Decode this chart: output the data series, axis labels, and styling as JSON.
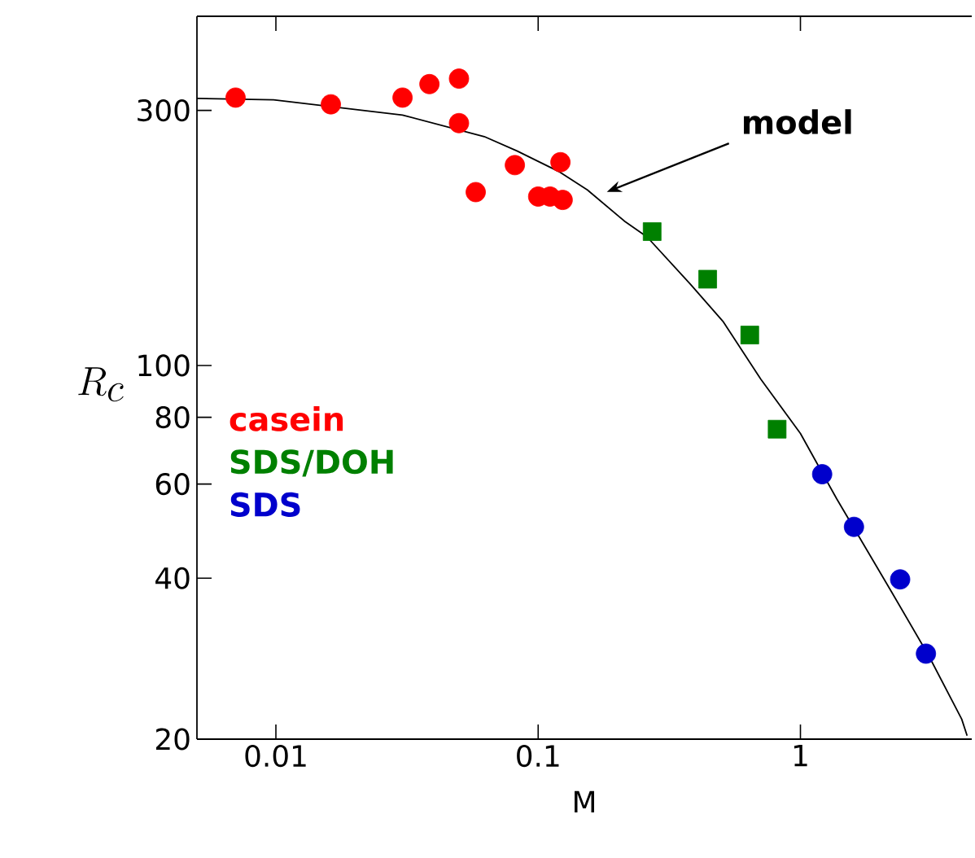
{
  "chart_data": {
    "type": "scatter",
    "xlabel": "M",
    "ylabel": "R_c",
    "log": "xy",
    "xlim": [
      0.005,
      4.5
    ],
    "ylim": [
      20,
      450
    ],
    "xticks": [
      0.01,
      0.1,
      1
    ],
    "yticks": [
      20,
      40,
      60,
      80,
      100,
      300
    ],
    "legend": "left",
    "annotations": [
      "model"
    ],
    "series": [
      {
        "name": "casein",
        "color": "#ff0000",
        "marker": "circle",
        "x": [
          0.00702,
          0.0162,
          0.0304,
          0.0385,
          0.0499,
          0.0499,
          0.0578,
          0.0815,
          0.1,
          0.111,
          0.1216,
          0.124
        ],
        "values": [
          317,
          308,
          317,
          336,
          344,
          284,
          211,
          237,
          207,
          207,
          240,
          204
        ]
      },
      {
        "name": "SDS/DOH",
        "color": "#008000",
        "marker": "square",
        "x": [
          0.272,
          0.443,
          0.641,
          0.815
        ],
        "values": [
          178,
          145,
          114,
          76
        ]
      },
      {
        "name": "SDS",
        "color": "#0000cc",
        "marker": "circle",
        "x": [
          1.21,
          1.6,
          2.4,
          3.01
        ],
        "values": [
          62.6,
          49.9,
          39.8,
          28.9
        ]
      },
      {
        "type": "line",
        "color": "#000000",
        "marker": "none",
        "line_style": "solid",
        "x": [
          0.005,
          0.0098,
          0.0304,
          0.0623,
          0.083,
          0.121,
          0.154,
          0.214,
          0.26,
          0.38,
          0.506,
          0.706,
          1.0,
          1.375,
          2.22,
          3.09,
          4.12,
          4.32
        ],
        "values": [
          316,
          314,
          294,
          268,
          252,
          230,
          213,
          186,
          174,
          142,
          121,
          94.3,
          74.6,
          56.3,
          37.8,
          28.6,
          21.8,
          20.3
        ]
      }
    ]
  }
}
